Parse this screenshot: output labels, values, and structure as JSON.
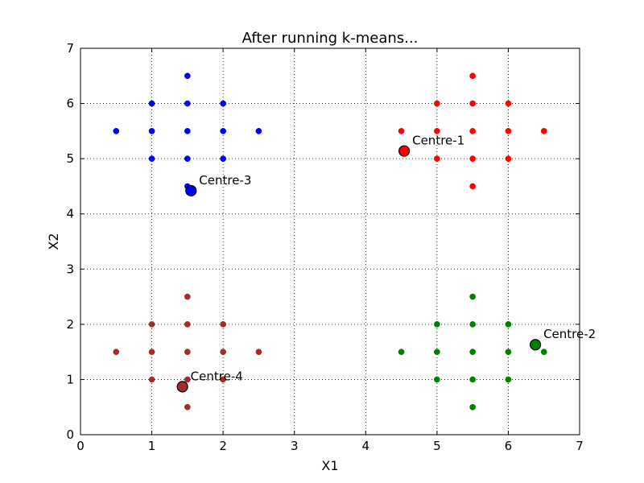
{
  "chart_data": {
    "type": "scatter",
    "title": "After running k-means...",
    "xlabel": "X1",
    "ylabel": "X2",
    "xlim": [
      0,
      7
    ],
    "ylim": [
      0,
      7
    ],
    "xticks": [
      "0",
      "1",
      "2",
      "3",
      "4",
      "5",
      "6",
      "7"
    ],
    "yticks": [
      "0",
      "1",
      "2",
      "3",
      "4",
      "5",
      "6",
      "7"
    ],
    "grid": true,
    "series": [
      {
        "color": "#0000ff",
        "points": [
          [
            1.5,
            6.5
          ],
          [
            1,
            6
          ],
          [
            1.5,
            6
          ],
          [
            2,
            6
          ],
          [
            0.5,
            5.5
          ],
          [
            1,
            5.5
          ],
          [
            1.5,
            5.5
          ],
          [
            2,
            5.5
          ],
          [
            2.5,
            5.5
          ],
          [
            1,
            5
          ],
          [
            1.5,
            5
          ],
          [
            2,
            5
          ],
          [
            1.5,
            4.5
          ]
        ]
      },
      {
        "color": "#ff0000",
        "points": [
          [
            5.5,
            6.5
          ],
          [
            5,
            6
          ],
          [
            5.5,
            6
          ],
          [
            6,
            6
          ],
          [
            4.5,
            5.5
          ],
          [
            5,
            5.5
          ],
          [
            5.5,
            5.5
          ],
          [
            6,
            5.5
          ],
          [
            6.5,
            5.5
          ],
          [
            5,
            5
          ],
          [
            5.5,
            5
          ],
          [
            6,
            5
          ],
          [
            5.5,
            4.5
          ]
        ]
      },
      {
        "color": "#008000",
        "points": [
          [
            5.5,
            2.5
          ],
          [
            5,
            2
          ],
          [
            5.5,
            2
          ],
          [
            6,
            2
          ],
          [
            4.5,
            1.5
          ],
          [
            5,
            1.5
          ],
          [
            5.5,
            1.5
          ],
          [
            6,
            1.5
          ],
          [
            6.5,
            1.5
          ],
          [
            5,
            1
          ],
          [
            5.5,
            1
          ],
          [
            6,
            1
          ],
          [
            5.5,
            0.5
          ]
        ]
      },
      {
        "color": "#a52a2a",
        "points": [
          [
            1.5,
            2.5
          ],
          [
            1,
            2
          ],
          [
            1.5,
            2
          ],
          [
            2,
            2
          ],
          [
            0.5,
            1.5
          ],
          [
            1,
            1.5
          ],
          [
            1.5,
            1.5
          ],
          [
            2,
            1.5
          ],
          [
            2.5,
            1.5
          ],
          [
            1,
            1
          ],
          [
            1.5,
            1
          ],
          [
            2,
            1
          ],
          [
            1.5,
            0.5
          ]
        ]
      }
    ],
    "centroids": [
      {
        "label": "Centre-1",
        "x": 4.54,
        "y": 5.14,
        "color": "#ff0000"
      },
      {
        "label": "Centre-2",
        "x": 6.38,
        "y": 1.63,
        "color": "#008000"
      },
      {
        "label": "Centre-3",
        "x": 1.55,
        "y": 4.42,
        "color": "#0000ff"
      },
      {
        "label": "Centre-4",
        "x": 1.43,
        "y": 0.87,
        "color": "#a52a2a"
      }
    ]
  }
}
